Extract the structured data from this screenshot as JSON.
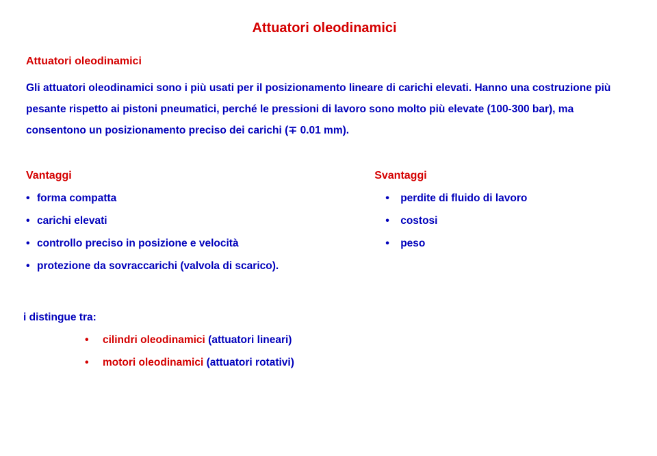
{
  "colors": {
    "red": "#d40000",
    "blue": "#0000bb",
    "black": "#000000"
  },
  "title": "Attuatori  oleodinamici",
  "subtitle": "Attuatori oleodinamici",
  "paragraph_part1": "Gli attuatori oleodinamici sono i più usati per il posizionamento lineare di carichi elevati. Hanno una costruzione più pesante rispetto ai pistoni pneumatici, perché le pressioni di lavoro sono molto più elevate (100-300 bar), ma consentono un ",
  "paragraph_part2_bold": "posizionamento preciso",
  "paragraph_part3": " dei carichi (",
  "paragraph_symbol": "∓",
  "paragraph_part4": " 0.01 mm).",
  "vantaggi": {
    "heading": "Vantaggi",
    "items": [
      "forma compatta",
      "carichi elevati",
      "controllo preciso in posizione e velocità",
      "protezione da sovraccarichi (valvola di scarico)."
    ]
  },
  "svantaggi": {
    "heading": "Svantaggi",
    "items": [
      "perdite di fluido di lavoro",
      "costosi",
      "peso"
    ]
  },
  "distingue_label": "i distingue tra:",
  "sublist": [
    {
      "main": "cilindri oleodinamici ",
      "paren": "(attuatori lineari)"
    },
    {
      "main": "motori oleodinamici ",
      "paren": "(attuatori rotativi)"
    }
  ]
}
